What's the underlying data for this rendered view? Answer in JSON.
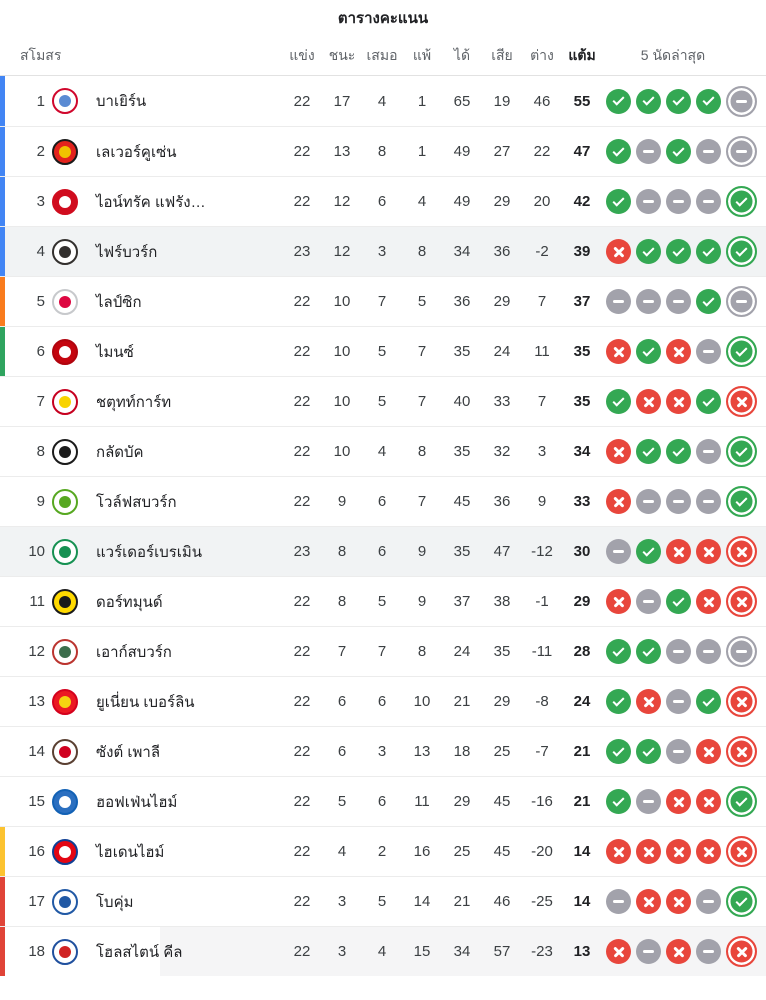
{
  "title": "ตารางคะแนน",
  "table": {
    "headers": {
      "club": "สโมสร",
      "played": "แข่ง",
      "won": "ชนะ",
      "drawn": "เสมอ",
      "lost": "แพ้",
      "goals_for": "ได้",
      "goals_against": "เสีย",
      "goal_diff": "ต่าง",
      "points": "แต้ม",
      "form": "5 นัดล่าสุด"
    },
    "colors": {
      "form_win": "#34a853",
      "form_draw": "#a2a2ab",
      "form_loss": "#e8463c",
      "zones": {
        "champions_league": "#4285f4",
        "europa_league": "#f97b1d",
        "conference_league": "#2fa45f",
        "relegation_playoff": "#fcc330",
        "relegation": "#e04438"
      },
      "row_highlight": "#f1f3f4"
    },
    "form_legend": {
      "w": "win-icon",
      "d": "draw-icon",
      "l": "loss-icon"
    },
    "rows": [
      {
        "pos": 1,
        "club": "บาเยิร์น",
        "crest": {
          "name": "bayern",
          "ring": "#d0072c",
          "fill": "#ffffff",
          "center": "#5a8bd3"
        },
        "played": 22,
        "won": 17,
        "drawn": 4,
        "lost": 1,
        "gf": 65,
        "ga": 19,
        "gd": 46,
        "pts": 55,
        "form": [
          "w",
          "w",
          "w",
          "w",
          "d"
        ],
        "zone": "champions_league",
        "highlight": false,
        "highlight_partial": false
      },
      {
        "pos": 2,
        "club": "เลเวอร์คูเซ่น",
        "crest": {
          "name": "leverkusen",
          "ring": "#1a1a1a",
          "fill": "#e3231d",
          "center": "#f0c200"
        },
        "played": 22,
        "won": 13,
        "drawn": 8,
        "lost": 1,
        "gf": 49,
        "ga": 27,
        "gd": 22,
        "pts": 47,
        "form": [
          "w",
          "d",
          "w",
          "d",
          "d"
        ],
        "zone": "champions_league",
        "highlight": false,
        "highlight_partial": false
      },
      {
        "pos": 3,
        "club": "ไอน์ทรัค แฟรัง…",
        "crest": {
          "name": "eintracht-frankfurt",
          "ring": "#d00c1e",
          "fill": "#d00c1e",
          "center": "#ffffff"
        },
        "played": 22,
        "won": 12,
        "drawn": 6,
        "lost": 4,
        "gf": 49,
        "ga": 29,
        "gd": 20,
        "pts": 42,
        "form": [
          "w",
          "d",
          "d",
          "d",
          "w"
        ],
        "zone": "champions_league",
        "highlight": false,
        "highlight_partial": false
      },
      {
        "pos": 4,
        "club": "ไฟร์บวร์ก",
        "crest": {
          "name": "freiburg",
          "ring": "#33302e",
          "fill": "#ffffff",
          "center": "#33302e"
        },
        "played": 23,
        "won": 12,
        "drawn": 3,
        "lost": 8,
        "gf": 34,
        "ga": 36,
        "gd": -2,
        "pts": 39,
        "form": [
          "l",
          "w",
          "w",
          "w",
          "w"
        ],
        "zone": "champions_league",
        "highlight": true,
        "highlight_partial": false
      },
      {
        "pos": 5,
        "club": "ไลป์ซิก",
        "crest": {
          "name": "rb-leipzig",
          "ring": "#c7c9cc",
          "fill": "#ffffff",
          "center": "#dd0741"
        },
        "played": 22,
        "won": 10,
        "drawn": 7,
        "lost": 5,
        "gf": 36,
        "ga": 29,
        "gd": 7,
        "pts": 37,
        "form": [
          "d",
          "d",
          "d",
          "w",
          "d"
        ],
        "zone": "europa_league",
        "highlight": false,
        "highlight_partial": false
      },
      {
        "pos": 6,
        "club": "ไมนซ์",
        "crest": {
          "name": "mainz",
          "ring": "#b0040e",
          "fill": "#c4050f",
          "center": "#ffffff"
        },
        "played": 22,
        "won": 10,
        "drawn": 5,
        "lost": 7,
        "gf": 35,
        "ga": 24,
        "gd": 11,
        "pts": 35,
        "form": [
          "l",
          "w",
          "l",
          "d",
          "w"
        ],
        "zone": "conference_league",
        "highlight": false,
        "highlight_partial": false
      },
      {
        "pos": 7,
        "club": "ชตุทท์การ์ท",
        "crest": {
          "name": "stuttgart",
          "ring": "#c6001f",
          "fill": "#ffffff",
          "center": "#f8d300"
        },
        "played": 22,
        "won": 10,
        "drawn": 5,
        "lost": 7,
        "gf": 40,
        "ga": 33,
        "gd": 7,
        "pts": 35,
        "form": [
          "w",
          "l",
          "l",
          "w",
          "l"
        ],
        "zone": null,
        "highlight": false,
        "highlight_partial": false
      },
      {
        "pos": 8,
        "club": "กลัดบัค",
        "crest": {
          "name": "gladbach",
          "ring": "#1b1b1b",
          "fill": "#ffffff",
          "center": "#1b1b1b"
        },
        "played": 22,
        "won": 10,
        "drawn": 4,
        "lost": 8,
        "gf": 35,
        "ga": 32,
        "gd": 3,
        "pts": 34,
        "form": [
          "l",
          "w",
          "w",
          "d",
          "w"
        ],
        "zone": null,
        "highlight": false,
        "highlight_partial": false
      },
      {
        "pos": 9,
        "club": "โวล์ฟสบวร์ก",
        "crest": {
          "name": "wolfsburg",
          "ring": "#57a821",
          "fill": "#ffffff",
          "center": "#57a821"
        },
        "played": 22,
        "won": 9,
        "drawn": 6,
        "lost": 7,
        "gf": 45,
        "ga": 36,
        "gd": 9,
        "pts": 33,
        "form": [
          "l",
          "d",
          "d",
          "d",
          "w"
        ],
        "zone": null,
        "highlight": false,
        "highlight_partial": false
      },
      {
        "pos": 10,
        "club": "แวร์เดอร์เบรเมิน",
        "crest": {
          "name": "werder-bremen",
          "ring": "#169152",
          "fill": "#ffffff",
          "center": "#169152"
        },
        "played": 23,
        "won": 8,
        "drawn": 6,
        "lost": 9,
        "gf": 35,
        "ga": 47,
        "gd": -12,
        "pts": 30,
        "form": [
          "d",
          "w",
          "l",
          "l",
          "l"
        ],
        "zone": null,
        "highlight": true,
        "highlight_partial": false
      },
      {
        "pos": 11,
        "club": "ดอร์ทมุนด์",
        "crest": {
          "name": "dortmund",
          "ring": "#1a1a1a",
          "fill": "#ffd900",
          "center": "#1a1a1a"
        },
        "played": 22,
        "won": 8,
        "drawn": 5,
        "lost": 9,
        "gf": 37,
        "ga": 38,
        "gd": -1,
        "pts": 29,
        "form": [
          "l",
          "d",
          "w",
          "l",
          "l"
        ],
        "zone": null,
        "highlight": false,
        "highlight_partial": false
      },
      {
        "pos": 12,
        "club": "เอาก์สบวร์ก",
        "crest": {
          "name": "augsburg",
          "ring": "#bb342f",
          "fill": "#ffffff",
          "center": "#3c6e4c"
        },
        "played": 22,
        "won": 7,
        "drawn": 7,
        "lost": 8,
        "gf": 24,
        "ga": 35,
        "gd": -11,
        "pts": 28,
        "form": [
          "w",
          "w",
          "d",
          "d",
          "d"
        ],
        "zone": null,
        "highlight": false,
        "highlight_partial": false
      },
      {
        "pos": 13,
        "club": "ยูเนี่ยน เบอร์ลิน",
        "crest": {
          "name": "union-berlin",
          "ring": "#d4011d",
          "fill": "#eb1923",
          "center": "#f5d311"
        },
        "played": 22,
        "won": 6,
        "drawn": 6,
        "lost": 10,
        "gf": 21,
        "ga": 29,
        "gd": -8,
        "pts": 24,
        "form": [
          "w",
          "l",
          "d",
          "w",
          "l"
        ],
        "zone": null,
        "highlight": false,
        "highlight_partial": false
      },
      {
        "pos": 14,
        "club": "ซังต์ เพาลี",
        "crest": {
          "name": "st-pauli",
          "ring": "#5a4032",
          "fill": "#ffffff",
          "center": "#d0001f"
        },
        "played": 22,
        "won": 6,
        "drawn": 3,
        "lost": 13,
        "gf": 18,
        "ga": 25,
        "gd": -7,
        "pts": 21,
        "form": [
          "w",
          "w",
          "d",
          "l",
          "l"
        ],
        "zone": null,
        "highlight": false,
        "highlight_partial": false
      },
      {
        "pos": 15,
        "club": "ฮอฟเฟ่นไฮม์",
        "crest": {
          "name": "hoffenheim",
          "ring": "#1261b5",
          "fill": "#2b6fc0",
          "center": "#ffffff"
        },
        "played": 22,
        "won": 5,
        "drawn": 6,
        "lost": 11,
        "gf": 29,
        "ga": 45,
        "gd": -16,
        "pts": 21,
        "form": [
          "w",
          "d",
          "l",
          "l",
          "w"
        ],
        "zone": null,
        "highlight": false,
        "highlight_partial": false
      },
      {
        "pos": 16,
        "club": "ไฮเดนไฮม์",
        "crest": {
          "name": "heidenheim",
          "ring": "#0f3f94",
          "fill": "#e30613",
          "center": "#ffffff"
        },
        "played": 22,
        "won": 4,
        "drawn": 2,
        "lost": 16,
        "gf": 25,
        "ga": 45,
        "gd": -20,
        "pts": 14,
        "form": [
          "l",
          "l",
          "l",
          "l",
          "l"
        ],
        "zone": "relegation_playoff",
        "highlight": false,
        "highlight_partial": false
      },
      {
        "pos": 17,
        "club": "โบคุ่ม",
        "crest": {
          "name": "bochum",
          "ring": "#2159a5",
          "fill": "#ffffff",
          "center": "#2159a5"
        },
        "played": 22,
        "won": 3,
        "drawn": 5,
        "lost": 14,
        "gf": 21,
        "ga": 46,
        "gd": -25,
        "pts": 14,
        "form": [
          "d",
          "l",
          "l",
          "d",
          "w"
        ],
        "zone": "relegation",
        "highlight": false,
        "highlight_partial": false
      },
      {
        "pos": 18,
        "club": "โฮลสไตน์ คีล",
        "crest": {
          "name": "holstein-kiel",
          "ring": "#20509e",
          "fill": "#ffffff",
          "center": "#d02222"
        },
        "played": 22,
        "won": 3,
        "drawn": 4,
        "lost": 15,
        "gf": 34,
        "ga": 57,
        "gd": -23,
        "pts": 13,
        "form": [
          "l",
          "d",
          "l",
          "d",
          "l"
        ],
        "zone": "relegation",
        "highlight": false,
        "highlight_partial": true
      }
    ]
  }
}
